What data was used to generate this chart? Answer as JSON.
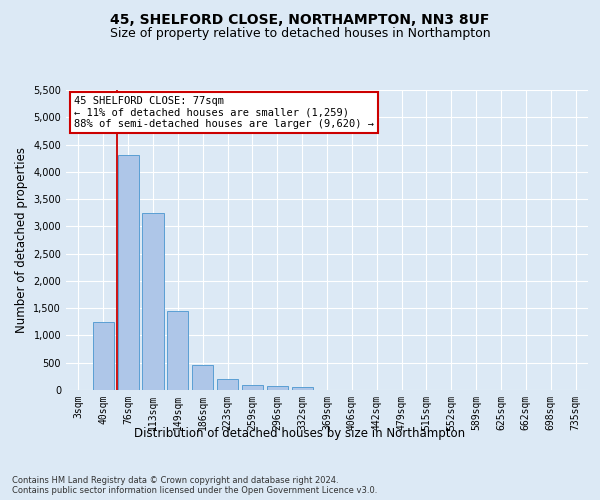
{
  "title_line1": "45, SHELFORD CLOSE, NORTHAMPTON, NN3 8UF",
  "title_line2": "Size of property relative to detached houses in Northampton",
  "xlabel": "Distribution of detached houses by size in Northampton",
  "ylabel": "Number of detached properties",
  "footnote": "Contains HM Land Registry data © Crown copyright and database right 2024.\nContains public sector information licensed under the Open Government Licence v3.0.",
  "bar_labels": [
    "3sqm",
    "40sqm",
    "76sqm",
    "113sqm",
    "149sqm",
    "186sqm",
    "223sqm",
    "259sqm",
    "296sqm",
    "332sqm",
    "369sqm",
    "406sqm",
    "442sqm",
    "479sqm",
    "515sqm",
    "552sqm",
    "589sqm",
    "625sqm",
    "662sqm",
    "698sqm",
    "735sqm"
  ],
  "bar_values": [
    0,
    1250,
    4300,
    3250,
    1450,
    460,
    200,
    100,
    65,
    55,
    0,
    0,
    0,
    0,
    0,
    0,
    0,
    0,
    0,
    0,
    0
  ],
  "bar_color": "#aec6e8",
  "bar_edge_color": "#5a9fd4",
  "red_line_x": 1.57,
  "annotation_line1": "45 SHELFORD CLOSE: 77sqm",
  "annotation_line2": "← 11% of detached houses are smaller (1,259)",
  "annotation_line3": "88% of semi-detached houses are larger (9,620) →",
  "red_line_color": "#cc0000",
  "annotation_border_color": "#cc0000",
  "ylim": [
    0,
    5500
  ],
  "yticks": [
    0,
    500,
    1000,
    1500,
    2000,
    2500,
    3000,
    3500,
    4000,
    4500,
    5000,
    5500
  ],
  "bg_color": "#dce9f5",
  "plot_bg_color": "#dce9f5",
  "grid_color": "#ffffff",
  "title_fontsize": 10,
  "subtitle_fontsize": 9,
  "axis_label_fontsize": 8.5,
  "tick_fontsize": 7,
  "footnote_fontsize": 6,
  "annotation_fontsize": 7.5
}
